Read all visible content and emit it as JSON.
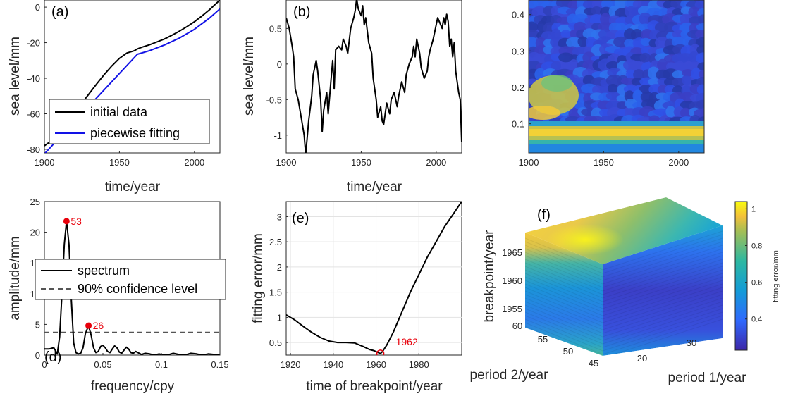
{
  "chart_data": [
    {
      "panel_label": "(a)",
      "type": "line",
      "xlabel": "time/year",
      "ylabel": "sea level/mm",
      "xlim": [
        1900,
        2017
      ],
      "ylim": [
        -82,
        4
      ],
      "xticks": [
        "1900",
        "1950",
        "2000"
      ],
      "yticks": [
        "-80",
        "-60",
        "-40",
        "-20",
        "0"
      ],
      "legend_location": "bottom-left",
      "series": [
        {
          "name": "initial data",
          "color": "#000000",
          "x": [
            1900,
            1905,
            1910,
            1915,
            1920,
            1925,
            1930,
            1935,
            1940,
            1945,
            1950,
            1955,
            1960,
            1962,
            1965,
            1970,
            1975,
            1980,
            1985,
            1990,
            1995,
            2000,
            2005,
            2010,
            2017
          ],
          "y": [
            -78,
            -75,
            -70,
            -65,
            -59.5,
            -54,
            -48.5,
            -43,
            -37.8,
            -33,
            -28.8,
            -25.8,
            -24.5,
            -23.5,
            -22.5,
            -21.2,
            -19.6,
            -17.9,
            -15.8,
            -13.5,
            -11,
            -8.2,
            -5,
            -1.5,
            4
          ]
        },
        {
          "name": "piecewise fitting",
          "color": "#1212e6",
          "x": [
            1900,
            1962,
            1970,
            1980,
            1990,
            2000,
            2010,
            2017
          ],
          "y": [
            -82.5,
            -26.5,
            -24.5,
            -21.3,
            -17.4,
            -12.5,
            -6.2,
            -1
          ]
        }
      ]
    },
    {
      "panel_label": "(b)",
      "type": "line",
      "xlabel": "time/year",
      "ylabel": "sea level/mm",
      "xlim": [
        1900,
        2017
      ],
      "ylim": [
        -1.25,
        0.9
      ],
      "xticks": [
        "1900",
        "1950",
        "2000"
      ],
      "yticks": [
        "-1",
        "-0.5",
        "0",
        "0.5"
      ],
      "series": [
        {
          "name": "",
          "color": "#000000",
          "x": [
            1900,
            1902,
            1904,
            1905,
            1906,
            1908,
            1910,
            1912,
            1913,
            1915,
            1917,
            1918,
            1920,
            1921,
            1923,
            1924,
            1925,
            1927,
            1928,
            1930,
            1931,
            1932,
            1933,
            1935,
            1937,
            1938,
            1940,
            1941,
            1943,
            1945,
            1946,
            1947,
            1948,
            1950,
            1951,
            1952,
            1953,
            1955,
            1957,
            1958,
            1960,
            1961,
            1963,
            1964,
            1965,
            1967,
            1969,
            1970,
            1972,
            1974,
            1975,
            1977,
            1979,
            1980,
            1982,
            1984,
            1985,
            1986,
            1987,
            1989,
            1990,
            1992,
            1994,
            1995,
            1996,
            1998,
            2000,
            2001,
            2002,
            2004,
            2005,
            2006,
            2007,
            2008,
            2009,
            2010,
            2011,
            2012,
            2013,
            2014,
            2015,
            2016,
            2017
          ],
          "y": [
            0.65,
            0.5,
            0.25,
            0.1,
            -0.35,
            -0.5,
            -0.75,
            -1.0,
            -1.27,
            -0.8,
            -0.45,
            -0.15,
            0.05,
            -0.1,
            -0.5,
            -0.95,
            -0.65,
            -0.4,
            -0.7,
            -0.2,
            0.05,
            -0.35,
            0.2,
            0.25,
            0.2,
            0.35,
            0.25,
            0.15,
            0.5,
            0.65,
            0.75,
            0.92,
            0.78,
            0.68,
            0.82,
            0.55,
            0.65,
            0.3,
            0.15,
            -0.2,
            -0.5,
            -0.75,
            -0.6,
            -0.8,
            -0.85,
            -0.55,
            -0.7,
            -0.5,
            -0.4,
            -0.6,
            -0.45,
            -0.25,
            -0.4,
            -0.15,
            0.0,
            0.1,
            0.25,
            0.1,
            0.35,
            0.15,
            -0.05,
            -0.2,
            -0.1,
            0.1,
            0.2,
            0.35,
            0.55,
            0.65,
            0.6,
            0.5,
            0.65,
            0.55,
            0.7,
            0.6,
            0.25,
            0.35,
            0.1,
            0.3,
            -0.1,
            -0.25,
            -0.4,
            -0.5,
            -1.1
          ]
        }
      ]
    },
    {
      "panel_label": "",
      "type": "heatmap",
      "xlim": [
        1900,
        2017
      ],
      "ylim": [
        0.02,
        0.44
      ],
      "xticks": [
        "1900",
        "1950",
        "2000"
      ],
      "yticks": [
        "0.1",
        "0.2",
        "0.3",
        "0.4"
      ]
    },
    {
      "panel_label": "(d)",
      "type": "line",
      "xlabel": "frequency/cpy",
      "ylabel": "amplitude/mm",
      "xlim": [
        0,
        0.15
      ],
      "ylim": [
        0,
        25
      ],
      "xticks": [
        "0",
        "0.05",
        "0.1",
        "0.15"
      ],
      "yticks": [
        "0",
        "5",
        "10",
        "15",
        "20",
        "25"
      ],
      "legend_location": "middle-right",
      "series": [
        {
          "name": "spectrum",
          "color": "#000000",
          "x": [
            0,
            0.004,
            0.008,
            0.011,
            0.013,
            0.015,
            0.017,
            0.0189,
            0.021,
            0.023,
            0.025,
            0.027,
            0.029,
            0.031,
            0.033,
            0.035,
            0.0377,
            0.04,
            0.042,
            0.044,
            0.046,
            0.048,
            0.05,
            0.052,
            0.054,
            0.056,
            0.058,
            0.06,
            0.062,
            0.064,
            0.066,
            0.068,
            0.07,
            0.072,
            0.074,
            0.076,
            0.078,
            0.08,
            0.083,
            0.086,
            0.09,
            0.094,
            0.098,
            0.1,
            0.105,
            0.11,
            0.115,
            0.12,
            0.125,
            0.13,
            0.135,
            0.14,
            0.145,
            0.15
          ],
          "y": [
            1.0,
            1.0,
            1.2,
            0.2,
            3.0,
            10.0,
            18.0,
            21.8,
            18.0,
            9.0,
            2.0,
            0.4,
            0.2,
            0.3,
            1.2,
            3.5,
            4.8,
            3.2,
            1.2,
            0.4,
            0.6,
            1.4,
            1.6,
            1.2,
            0.6,
            0.4,
            1.0,
            1.5,
            1.2,
            0.5,
            0.3,
            0.8,
            1.3,
            1.0,
            0.4,
            0.3,
            0.6,
            0.4,
            0.1,
            0.3,
            0.2,
            0.0,
            0.2,
            0.1,
            0.0,
            0.3,
            0.1,
            0.0,
            0.3,
            0.2,
            0.0,
            0.2,
            0.1,
            0.1
          ]
        },
        {
          "name": "90% confidence level",
          "color": "#555555",
          "dashed": true,
          "x": [
            0,
            0.15
          ],
          "y": [
            3.7,
            3.7
          ]
        }
      ],
      "annotations": [
        {
          "text": "53",
          "x": 0.0189,
          "y": 21.8
        },
        {
          "text": "26",
          "x": 0.0377,
          "y": 4.8
        }
      ]
    },
    {
      "panel_label": "(e)",
      "type": "line",
      "xlabel": "time of breakpoint/year",
      "ylabel": "fitting error/mm",
      "xlim": [
        1918,
        2000
      ],
      "ylim": [
        0.25,
        3.3
      ],
      "xticks": [
        "1920",
        "1940",
        "1960",
        "1980"
      ],
      "yticks": [
        "0.5",
        "1",
        "1.5",
        "2",
        "2.5",
        "3"
      ],
      "grid": true,
      "series": [
        {
          "name": "",
          "color": "#000000",
          "x": [
            1918,
            1922,
            1926,
            1930,
            1934,
            1938,
            1942,
            1946,
            1950,
            1954,
            1957,
            1959,
            1961,
            1962,
            1963,
            1965,
            1968,
            1972,
            1976,
            1980,
            1984,
            1988,
            1992,
            1996,
            2000
          ],
          "y": [
            1.05,
            0.95,
            0.82,
            0.7,
            0.6,
            0.53,
            0.5,
            0.5,
            0.49,
            0.42,
            0.36,
            0.34,
            0.3,
            0.28,
            0.32,
            0.45,
            0.7,
            1.1,
            1.5,
            1.85,
            2.2,
            2.5,
            2.8,
            3.05,
            3.3
          ]
        }
      ],
      "annotations": [
        {
          "text": "1962",
          "x": 1962,
          "y": 0.28
        }
      ]
    },
    {
      "panel_label": "(f)",
      "type": "scatter",
      "xlabel": "period 1/year",
      "ylabel": "period 2/year",
      "zlabel": "breakpoint/year",
      "x_ticks": [
        "20",
        "30"
      ],
      "y_ticks": [
        "45",
        "50",
        "55",
        "60"
      ],
      "z_ticks": [
        "1955",
        "1960",
        "1965"
      ],
      "colorbar": {
        "label": "fitting error/mm",
        "ticks": [
          "0.4",
          "0.6",
          "0.8",
          "1"
        ]
      }
    }
  ]
}
